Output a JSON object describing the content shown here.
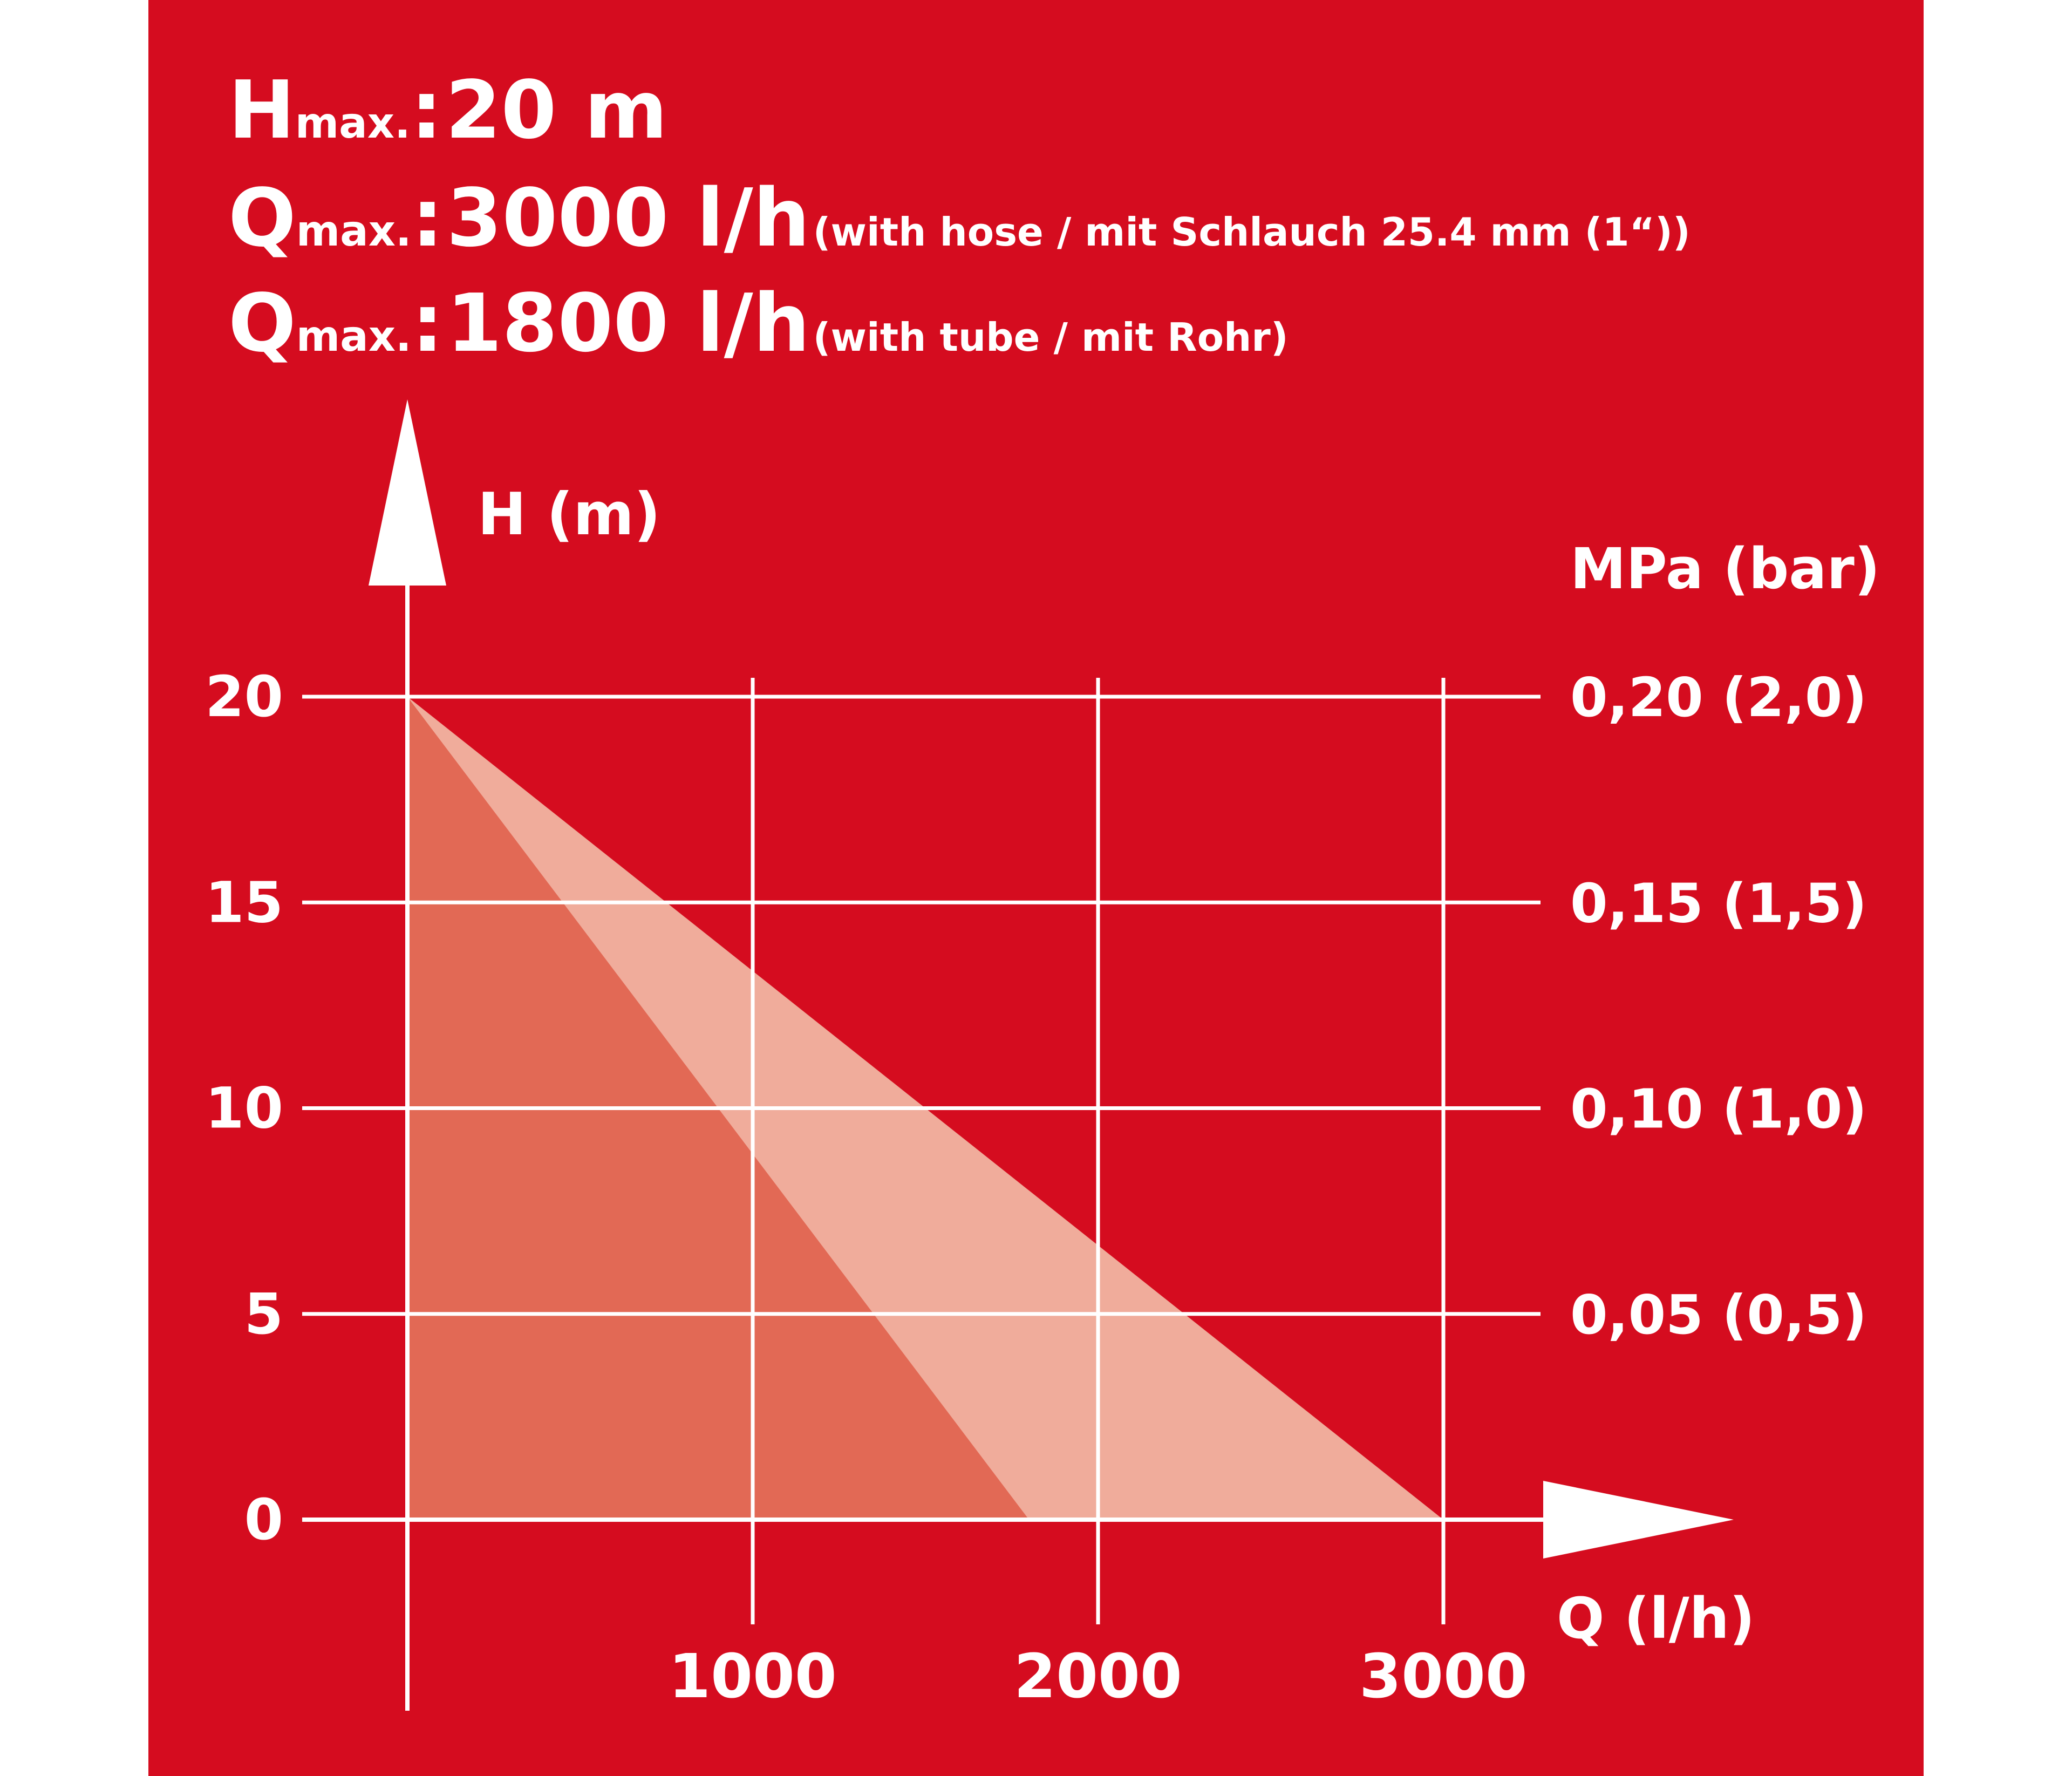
{
  "specs": [
    {
      "symbol": "H",
      "sub": "max.",
      "colon": ":",
      "value": "20 m",
      "note": ""
    },
    {
      "symbol": "Q",
      "sub": "max.",
      "colon": ":",
      "value": "3000 l/h",
      "note": "(with hose / mit Schlauch 25.4 mm (1“))"
    },
    {
      "symbol": "Q",
      "sub": "max.",
      "colon": ":",
      "value": "1800 l/h",
      "note": "(with tube / mit Rohr)"
    }
  ],
  "colors": {
    "background": "#d50c1f",
    "hose_area": "#f0ac9b",
    "tube_area": "#e26955",
    "lines": "#ffffff"
  },
  "chart_data": {
    "type": "area",
    "title": "",
    "xlabel": "Q (l/h)",
    "ylabel": "H (m)",
    "y2label": "MPa (bar)",
    "xlim": [
      0,
      3000
    ],
    "ylim": [
      0,
      20
    ],
    "grid": true,
    "x_ticks": [
      "1000",
      "2000",
      "3000"
    ],
    "y_ticks": [
      "0",
      "5",
      "10",
      "15",
      "20"
    ],
    "y2_ticks": [
      "0,05 (0,5)",
      "0,10 (1,0)",
      "0,15 (1,5)",
      "0,20 (2,0)"
    ],
    "series": [
      {
        "name": "",
        "x": [
          0,
          3000
        ],
        "y": [
          20,
          0
        ]
      },
      {
        "name": "",
        "x": [
          0,
          1800
        ],
        "y": [
          20,
          0
        ]
      }
    ]
  }
}
